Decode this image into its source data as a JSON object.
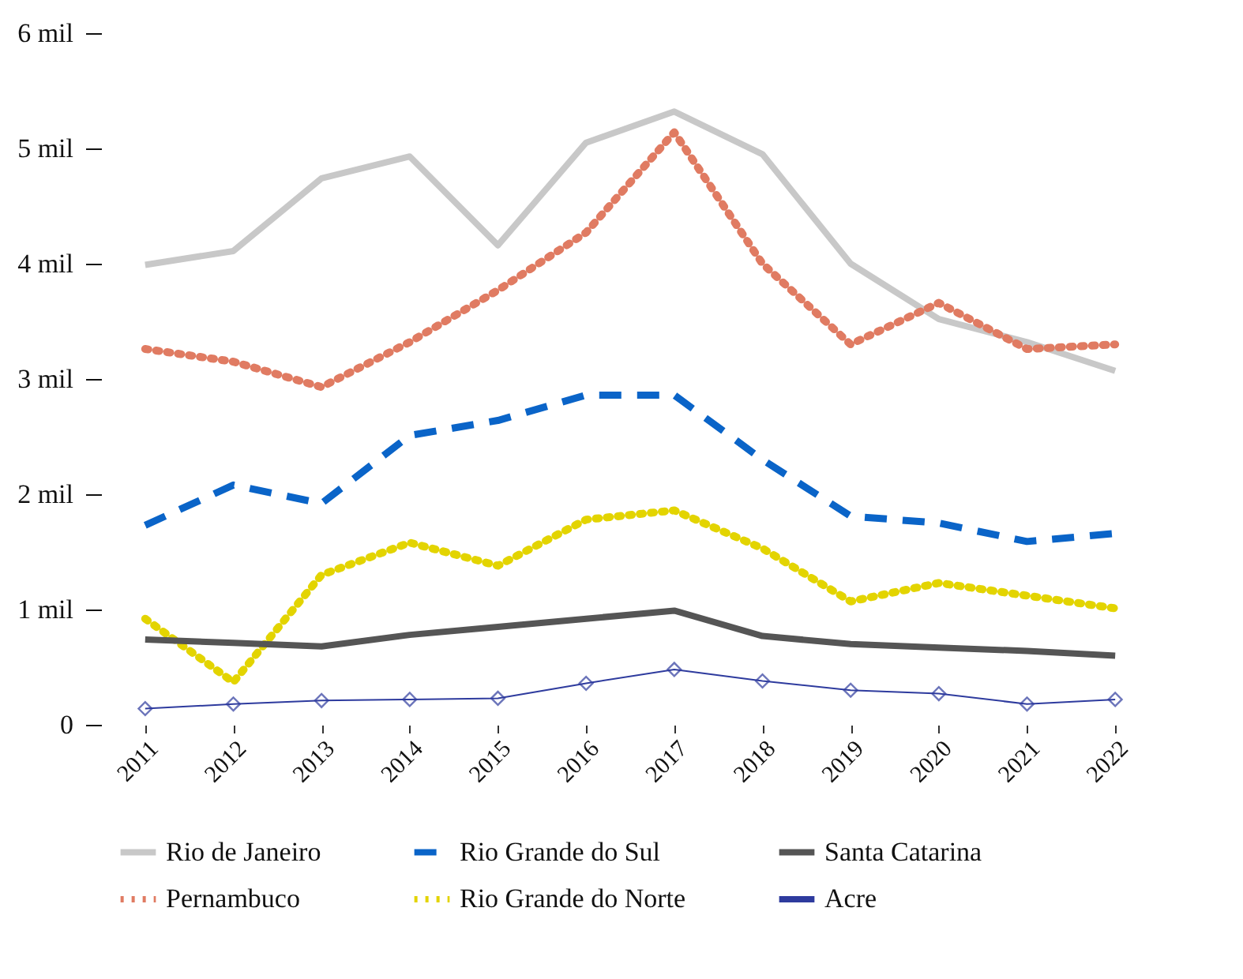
{
  "chart_data": {
    "type": "line",
    "categories": [
      "2011",
      "2012",
      "2013",
      "2014",
      "2015",
      "2016",
      "2017",
      "2018",
      "2019",
      "2020",
      "2021",
      "2022"
    ],
    "series": [
      {
        "name": "Rio de Janeiro",
        "color": "#c8c8c8",
        "line_style": "solid",
        "marker": "none",
        "values": [
          3.99,
          4.11,
          4.74,
          4.93,
          4.16,
          5.05,
          5.32,
          4.95,
          4.0,
          3.52,
          3.32,
          3.07
        ]
      },
      {
        "name": "Pernambuco",
        "color": "#e07b62",
        "line_style": "dotted",
        "marker": "none",
        "values": [
          3.26,
          3.15,
          2.93,
          3.32,
          3.77,
          4.27,
          5.14,
          4.0,
          3.3,
          3.66,
          3.26,
          3.3
        ]
      },
      {
        "name": "Rio Grande do Sul",
        "color": "#0a64c8",
        "line_style": "dashed",
        "marker": "none",
        "values": [
          1.73,
          2.08,
          1.92,
          2.51,
          2.64,
          2.86,
          2.86,
          2.3,
          1.81,
          1.75,
          1.59,
          1.66
        ]
      },
      {
        "name": "Rio Grande do Norte",
        "color": "#e3d400",
        "line_style": "dotted",
        "marker": "none",
        "values": [
          0.92,
          0.37,
          1.3,
          1.58,
          1.38,
          1.78,
          1.86,
          1.53,
          1.07,
          1.23,
          1.12,
          1.01
        ]
      },
      {
        "name": "Santa Catarina",
        "color": "#555555",
        "line_style": "solid",
        "marker": "none",
        "values": [
          0.74,
          0.71,
          0.68,
          0.78,
          0.85,
          0.92,
          0.99,
          0.77,
          0.7,
          0.67,
          0.64,
          0.6
        ]
      },
      {
        "name": "Acre",
        "color": "#2e3b9e",
        "line_style": "solid",
        "marker": "diamond",
        "values": [
          0.14,
          0.18,
          0.21,
          0.22,
          0.23,
          0.36,
          0.48,
          0.38,
          0.3,
          0.27,
          0.18,
          0.22
        ]
      }
    ],
    "ylim": [
      0,
      6
    ],
    "yticks": [
      0,
      {
        "value": 1,
        "label": "1 mil"
      },
      {
        "value": 2,
        "label": "2 mil"
      },
      {
        "value": 3,
        "label": "3 mil"
      },
      {
        "value": 4,
        "label": "4 mil"
      },
      {
        "value": 5,
        "label": "5 mil"
      },
      {
        "value": 6,
        "label": "6 mil"
      }
    ],
    "grid": false,
    "legend": "bottom"
  }
}
